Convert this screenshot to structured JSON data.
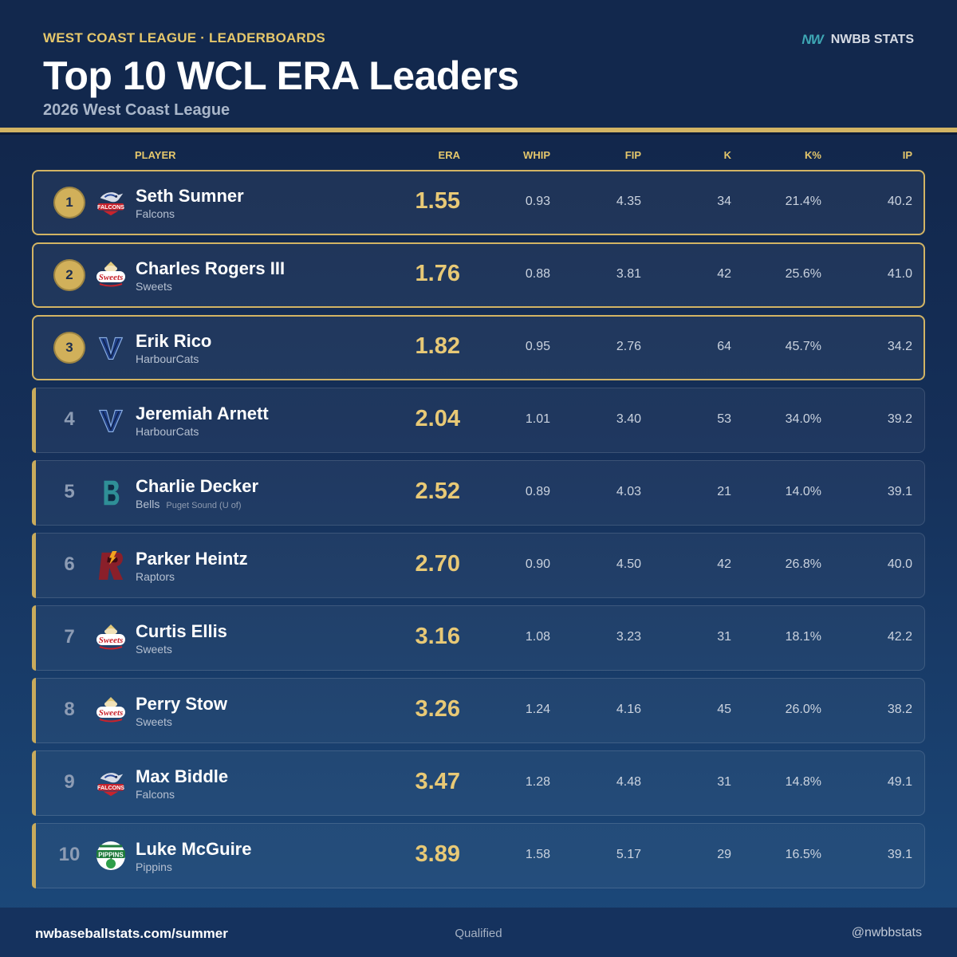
{
  "header": {
    "eyebrow": "WEST COAST LEAGUE · LEADERBOARDS",
    "title": "Top 10 WCL ERA Leaders",
    "subtitle": "2026 West Coast League",
    "brand_mark": "NW",
    "brand_name": "NWBB STATS"
  },
  "columns": {
    "player": "PLAYER",
    "era": "ERA",
    "whip": "WHIP",
    "fip": "FIP",
    "k": "K",
    "kpct": "K%",
    "ip": "IP"
  },
  "colors": {
    "gold": "#d2b464",
    "era_text": "#e8c976",
    "background_top": "#102346",
    "background_bottom": "#1c4a7c"
  },
  "rows": [
    {
      "rank": "1",
      "name": "Seth Sumner",
      "team": "Falcons",
      "school": "",
      "logo": "falcons-logo",
      "era": "1.55",
      "whip": "0.93",
      "fip": "4.35",
      "k": "34",
      "kpct": "21.4%",
      "ip": "40.2"
    },
    {
      "rank": "2",
      "name": "Charles Rogers III",
      "team": "Sweets",
      "school": "",
      "logo": "sweets-logo",
      "era": "1.76",
      "whip": "0.88",
      "fip": "3.81",
      "k": "42",
      "kpct": "25.6%",
      "ip": "41.0"
    },
    {
      "rank": "3",
      "name": "Erik Rico",
      "team": "HarbourCats",
      "school": "",
      "logo": "harbourcats-logo",
      "era": "1.82",
      "whip": "0.95",
      "fip": "2.76",
      "k": "64",
      "kpct": "45.7%",
      "ip": "34.2"
    },
    {
      "rank": "4",
      "name": "Jeremiah Arnett",
      "team": "HarbourCats",
      "school": "",
      "logo": "harbourcats-logo",
      "era": "2.04",
      "whip": "1.01",
      "fip": "3.40",
      "k": "53",
      "kpct": "34.0%",
      "ip": "39.2"
    },
    {
      "rank": "5",
      "name": "Charlie Decker",
      "team": "Bells",
      "school": "Puget Sound (U of)",
      "logo": "bells-logo",
      "era": "2.52",
      "whip": "0.89",
      "fip": "4.03",
      "k": "21",
      "kpct": "14.0%",
      "ip": "39.1"
    },
    {
      "rank": "6",
      "name": "Parker Heintz",
      "team": "Raptors",
      "school": "",
      "logo": "raptors-logo",
      "era": "2.70",
      "whip": "0.90",
      "fip": "4.50",
      "k": "42",
      "kpct": "26.8%",
      "ip": "40.0"
    },
    {
      "rank": "7",
      "name": "Curtis Ellis",
      "team": "Sweets",
      "school": "",
      "logo": "sweets-logo",
      "era": "3.16",
      "whip": "1.08",
      "fip": "3.23",
      "k": "31",
      "kpct": "18.1%",
      "ip": "42.2"
    },
    {
      "rank": "8",
      "name": "Perry Stow",
      "team": "Sweets",
      "school": "",
      "logo": "sweets-logo",
      "era": "3.26",
      "whip": "1.24",
      "fip": "4.16",
      "k": "45",
      "kpct": "26.0%",
      "ip": "38.2"
    },
    {
      "rank": "9",
      "name": "Max Biddle",
      "team": "Falcons",
      "school": "",
      "logo": "falcons-logo",
      "era": "3.47",
      "whip": "1.28",
      "fip": "4.48",
      "k": "31",
      "kpct": "14.8%",
      "ip": "49.1"
    },
    {
      "rank": "10",
      "name": "Luke McGuire",
      "team": "Pippins",
      "school": "",
      "logo": "pippins-logo",
      "era": "3.89",
      "whip": "1.58",
      "fip": "5.17",
      "k": "29",
      "kpct": "16.5%",
      "ip": "39.1"
    }
  ],
  "footer": {
    "website": "nwbaseballstats.com/summer",
    "qualifier": "Qualified",
    "handle": "@nwbbstats"
  }
}
